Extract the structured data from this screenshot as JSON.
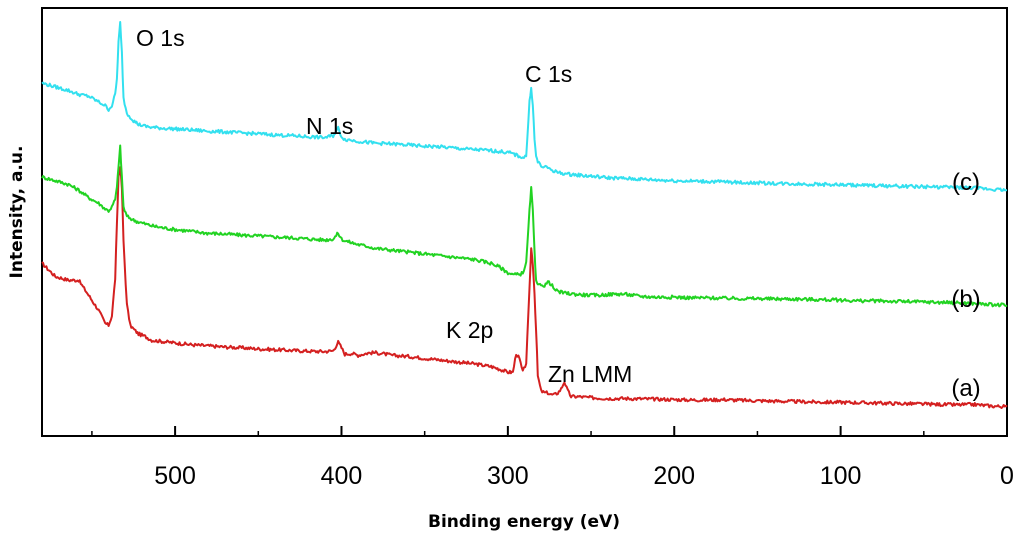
{
  "chart_data": {
    "type": "line",
    "xlabel": "Binding energy (eV)",
    "ylabel": "Intensity, a.u.",
    "xlim": [
      580,
      0
    ],
    "x_reversed": true,
    "y_ticks_shown": false,
    "grid": false,
    "xticks": [
      500,
      400,
      300,
      200,
      100,
      0
    ],
    "xtick_labels": [
      "500",
      "400",
      "300",
      "200",
      "100",
      "0"
    ],
    "annotations": [
      {
        "text": "O 1s",
        "x": 533
      },
      {
        "text": "N 1s",
        "x": 400
      },
      {
        "text": "C 1s",
        "x": 285
      },
      {
        "text": "K 2p",
        "x": 295
      },
      {
        "text": "Zn LMM",
        "x": 265
      }
    ],
    "series": [
      {
        "label": "(a)",
        "color": "#d42020",
        "x": [
          580,
          572,
          564,
          558,
          552,
          546,
          542,
          540,
          538,
          536,
          535,
          534,
          533,
          532,
          531,
          529,
          527,
          525,
          522,
          518,
          514,
          508,
          500,
          490,
          480,
          470,
          460,
          450,
          440,
          430,
          420,
          410,
          405,
          402,
          400,
          398,
          394,
          390,
          384,
          380,
          376,
          370,
          360,
          350,
          340,
          330,
          320,
          310,
          305,
          300,
          297,
          295,
          293,
          291,
          289,
          287,
          286,
          285,
          284,
          283,
          282,
          280,
          278,
          276,
          274,
          272,
          270,
          268,
          266,
          264,
          262,
          258,
          250,
          240,
          230,
          220,
          210,
          200,
          190,
          180,
          170,
          160,
          150,
          140,
          130,
          120,
          110,
          100,
          90,
          80,
          70,
          60,
          50,
          40,
          30,
          20,
          10,
          0
        ],
        "y": [
          2.6,
          2.25,
          2.15,
          2.15,
          1.75,
          1.35,
          1.0,
          0.95,
          1.2,
          2.2,
          3.6,
          4.9,
          5.2,
          4.6,
          3.2,
          1.5,
          0.95,
          0.85,
          0.72,
          0.65,
          0.55,
          0.52,
          0.48,
          0.43,
          0.4,
          0.37,
          0.35,
          0.32,
          0.3,
          0.28,
          0.26,
          0.25,
          0.27,
          0.5,
          0.35,
          0.18,
          0.2,
          0.15,
          0.21,
          0.22,
          0.2,
          0.15,
          0.12,
          0.07,
          0.02,
          -0.03,
          -0.08,
          -0.15,
          -0.22,
          -0.3,
          -0.3,
          0.2,
          0.05,
          -0.3,
          -0.05,
          1.9,
          3.0,
          2.6,
          1.8,
          0.8,
          -0.4,
          -0.8,
          -0.85,
          -0.85,
          -0.9,
          -0.9,
          -0.85,
          -0.75,
          -0.55,
          -0.8,
          -0.95,
          -0.95,
          -0.98,
          -1.0,
          -1.0,
          -1.01,
          -1.02,
          -1.03,
          -1.04,
          -1.04,
          -1.03,
          -1.05,
          -1.06,
          -1.07,
          -1.08,
          -1.09,
          -1.1,
          -1.1,
          -1.11,
          -1.12,
          -1.13,
          -1.14,
          -1.15,
          -1.16,
          -1.17,
          -1.16,
          -1.2,
          -1.22
        ]
      },
      {
        "label": "(b)",
        "color": "#22d322",
        "x": [
          580,
          572,
          564,
          558,
          552,
          546,
          542,
          540,
          538,
          536,
          535,
          534,
          533,
          532,
          531,
          529,
          527,
          525,
          522,
          518,
          514,
          508,
          500,
          490,
          480,
          470,
          460,
          450,
          440,
          430,
          420,
          410,
          405,
          402,
          400,
          398,
          394,
          390,
          384,
          380,
          370,
          360,
          350,
          340,
          330,
          320,
          310,
          305,
          300,
          297,
          295,
          293,
          291,
          289,
          287,
          286,
          285,
          284,
          283,
          282,
          280,
          278,
          276,
          274,
          272,
          270,
          265,
          260,
          255,
          250,
          245,
          240,
          235,
          230,
          225,
          220,
          210,
          200,
          190,
          180,
          170,
          160,
          150,
          140,
          130,
          120,
          110,
          100,
          90,
          80,
          70,
          60,
          50,
          40,
          30,
          20,
          10,
          0
        ],
        "y": [
          4.9,
          4.8,
          4.7,
          4.55,
          4.35,
          4.2,
          4.05,
          4.0,
          4.1,
          4.3,
          4.6,
          5.2,
          5.7,
          4.9,
          4.1,
          3.85,
          3.8,
          3.75,
          3.7,
          3.65,
          3.6,
          3.55,
          3.5,
          3.45,
          3.4,
          3.38,
          3.35,
          3.33,
          3.3,
          3.28,
          3.25,
          3.22,
          3.25,
          3.4,
          3.25,
          3.2,
          3.15,
          3.1,
          3.05,
          3.0,
          2.95,
          2.9,
          2.85,
          2.8,
          2.75,
          2.7,
          2.6,
          2.5,
          2.35,
          2.3,
          2.3,
          2.3,
          2.35,
          2.6,
          4.0,
          4.6,
          4.0,
          2.9,
          2.1,
          2.0,
          2.05,
          2.0,
          2.1,
          2.05,
          1.9,
          1.85,
          1.8,
          1.78,
          1.76,
          1.75,
          1.75,
          1.77,
          1.78,
          1.78,
          1.75,
          1.72,
          1.7,
          1.7,
          1.68,
          1.68,
          1.67,
          1.66,
          1.66,
          1.65,
          1.65,
          1.64,
          1.63,
          1.62,
          1.6,
          1.6,
          1.59,
          1.58,
          1.57,
          1.56,
          1.55,
          1.53,
          1.5,
          1.48
        ]
      },
      {
        "label": "(c)",
        "color": "#33e0ef",
        "x": [
          580,
          572,
          564,
          558,
          552,
          546,
          542,
          540,
          538,
          536,
          535,
          534,
          533,
          532,
          531,
          529,
          527,
          525,
          522,
          518,
          514,
          508,
          500,
          490,
          480,
          470,
          460,
          450,
          440,
          430,
          420,
          410,
          405,
          402,
          400,
          398,
          394,
          390,
          384,
          380,
          370,
          360,
          350,
          340,
          330,
          320,
          310,
          305,
          300,
          297,
          295,
          293,
          291,
          289,
          287,
          286,
          285,
          284,
          283,
          282,
          280,
          278,
          276,
          274,
          272,
          270,
          265,
          260,
          255,
          250,
          245,
          240,
          235,
          230,
          225,
          220,
          210,
          200,
          190,
          180,
          170,
          160,
          150,
          140,
          130,
          120,
          110,
          100,
          90,
          80,
          70,
          60,
          50,
          40,
          30,
          20,
          10,
          0
        ],
        "y": [
          7.4,
          7.3,
          7.2,
          7.1,
          7.05,
          6.9,
          6.8,
          6.7,
          6.8,
          7.1,
          7.5,
          8.5,
          9.0,
          8.2,
          7.0,
          6.6,
          6.5,
          6.4,
          6.3,
          6.25,
          6.22,
          6.2,
          6.18,
          6.15,
          6.12,
          6.1,
          6.07,
          6.05,
          6.02,
          6.0,
          5.97,
          5.95,
          6.0,
          6.2,
          5.98,
          5.9,
          5.88,
          5.85,
          5.82,
          5.8,
          5.78,
          5.75,
          5.72,
          5.7,
          5.66,
          5.63,
          5.6,
          5.58,
          5.55,
          5.52,
          5.48,
          5.45,
          5.42,
          5.45,
          6.9,
          7.3,
          6.8,
          5.9,
          5.45,
          5.3,
          5.2,
          5.15,
          5.15,
          5.1,
          5.05,
          5.02,
          4.98,
          4.96,
          4.94,
          4.92,
          4.9,
          4.88,
          4.87,
          4.86,
          4.85,
          4.84,
          4.82,
          4.8,
          4.79,
          4.78,
          4.77,
          4.75,
          4.74,
          4.73,
          4.72,
          4.71,
          4.7,
          4.69,
          4.68,
          4.67,
          4.66,
          4.65,
          4.64,
          4.63,
          4.62,
          4.61,
          4.58,
          4.55
        ]
      }
    ]
  }
}
